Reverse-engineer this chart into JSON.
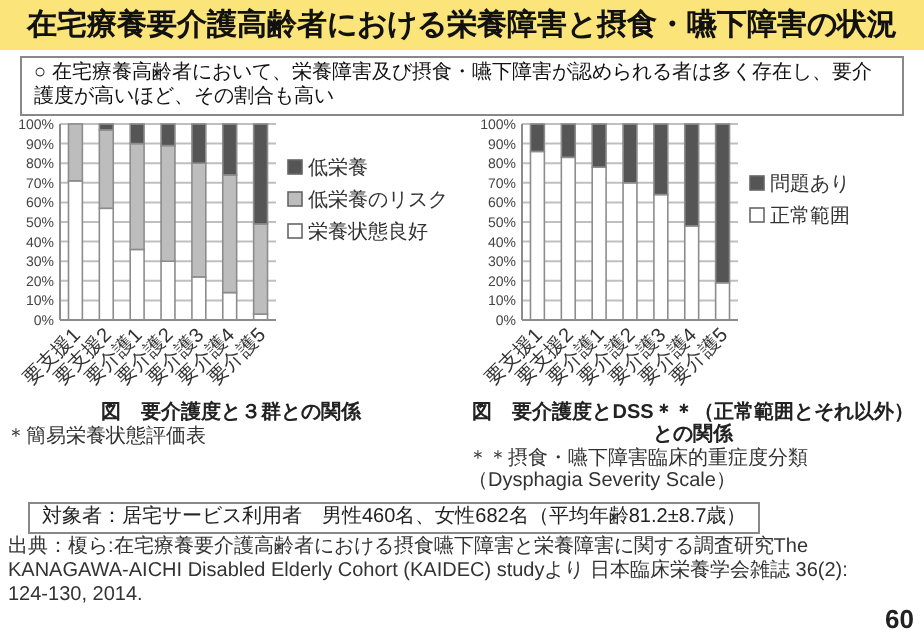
{
  "chart_data": [
    {
      "type": "bar",
      "stacked": true,
      "title": "図　要介護度と３群との関係",
      "categories": [
        "要支援1",
        "要支援2",
        "要介護1",
        "要介護2",
        "要介護3",
        "要介護4",
        "要介護5"
      ],
      "series": [
        {
          "name": "栄養状態良好",
          "color": "#ffffff",
          "values": [
            71,
            57,
            36,
            30,
            22,
            14,
            3
          ]
        },
        {
          "name": "低栄養のリスク",
          "color": "#bdbdbd",
          "values": [
            29,
            40,
            54,
            59,
            58,
            60,
            46
          ]
        },
        {
          "name": "低栄養",
          "color": "#555555",
          "values": [
            0,
            3,
            10,
            11,
            20,
            26,
            51
          ]
        }
      ],
      "ylim": [
        0,
        100
      ],
      "yticks": [
        {
          "value": 0,
          "label": "0%"
        },
        {
          "value": 10,
          "label": "10%"
        },
        {
          "value": 20,
          "label": "20%"
        },
        {
          "value": 30,
          "label": "30%"
        },
        {
          "value": 40,
          "label": "40%"
        },
        {
          "value": 50,
          "label": "50%"
        },
        {
          "value": 60,
          "label": "60%"
        },
        {
          "value": 70,
          "label": "70%"
        },
        {
          "value": 80,
          "label": "80%"
        },
        {
          "value": 90,
          "label": "90%"
        },
        {
          "value": 100,
          "label": "100%"
        }
      ],
      "grid": "y",
      "legend": "right",
      "annotations": [
        "＊簡易栄養状態評価表",
        "在宅療養要介護高齢者における栄養障害と摂食・嚥下障害の状況",
        "○ 在宅療養高齢者において、栄養障害及び摂食・嚥下障害が認められる者は多く存在し、要介護度が高いほど、その割合も高い",
        "対象者：居宅サービス利用者　男性460名、女性682名（平均年齢81.2±8.7歳）",
        "出典：榎ら:在宅療養要介護高齢者における摂食嚥下障害と栄養障害に関する調査研究The KANAGAWA-AICHI Disabled Elderly Cohort (KAIDEC) studyより 日本臨床栄養学会雑誌 36(2): 124-130, 2014.",
        "60"
      ]
    },
    {
      "type": "bar",
      "stacked": true,
      "title": "図　要介護度とDSS＊＊（正常範囲とそれ以外）との関係",
      "categories": [
        "要支援1",
        "要支援2",
        "要介護1",
        "要介護2",
        "要介護3",
        "要介護4",
        "要介護5"
      ],
      "series": [
        {
          "name": "正常範囲",
          "color": "#ffffff",
          "values": [
            86,
            83,
            78,
            70,
            64,
            48,
            19
          ]
        },
        {
          "name": "問題あり",
          "color": "#555555",
          "values": [
            14,
            17,
            22,
            30,
            36,
            52,
            81
          ]
        }
      ],
      "ylim": [
        0,
        100
      ],
      "yticks": [
        {
          "value": 0,
          "label": "0%"
        },
        {
          "value": 10,
          "label": "10%"
        },
        {
          "value": 20,
          "label": "20%"
        },
        {
          "value": 30,
          "label": "30%"
        },
        {
          "value": 40,
          "label": "40%"
        },
        {
          "value": 50,
          "label": "50%"
        },
        {
          "value": 60,
          "label": "60%"
        },
        {
          "value": 70,
          "label": "70%"
        },
        {
          "value": 80,
          "label": "80%"
        },
        {
          "value": 90,
          "label": "90%"
        },
        {
          "value": 100,
          "label": "100%"
        }
      ],
      "grid": "y",
      "legend": "right",
      "annotations": [
        "＊＊摂食・嚥下障害臨床的重症度分類（Dysphagia Severity Scale）"
      ]
    }
  ]
}
